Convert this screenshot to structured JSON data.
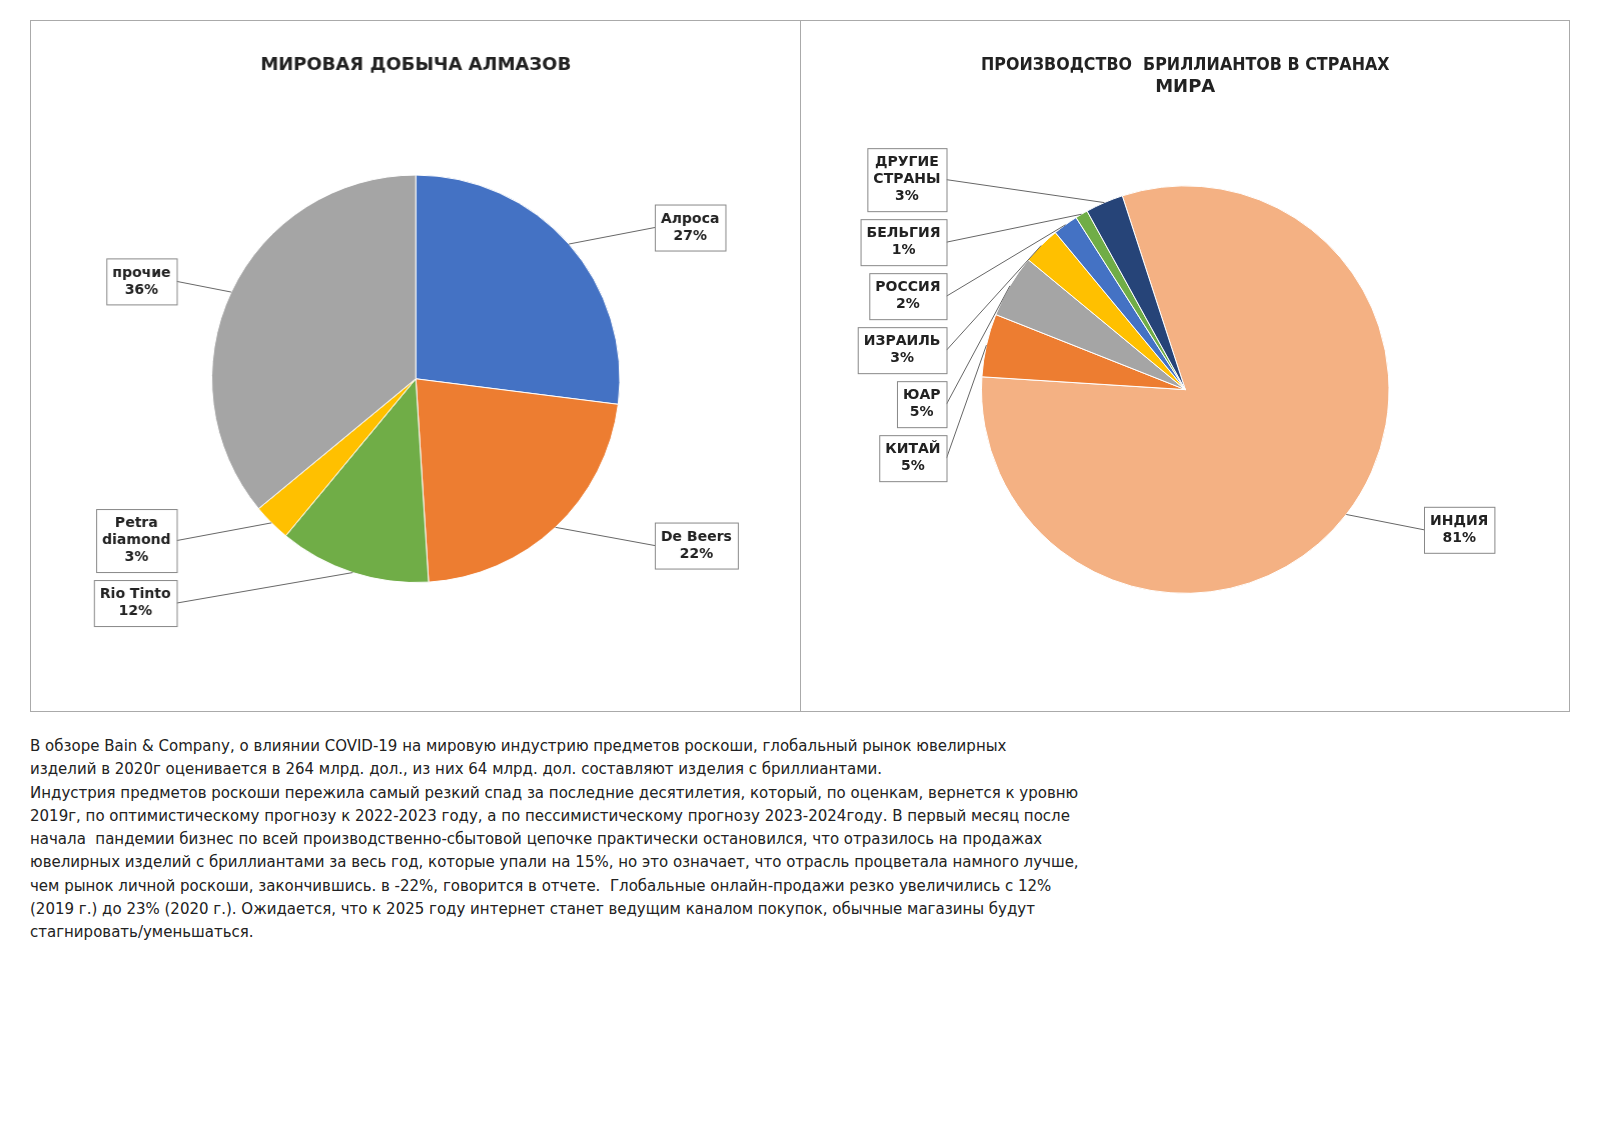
{
  "chart_data": [
    {
      "type": "pie",
      "title": "МИРОВАЯ ДОБЫЧА АЛМАЗОВ",
      "categories": [
        "Алроса",
        "De Beers",
        "Rio Tinto",
        "Petra\ndiamond",
        "прочие"
      ],
      "values": [
        27,
        22,
        12,
        3,
        36
      ],
      "value_labels": [
        "27%",
        "22%",
        "12%",
        "3%",
        "36%"
      ],
      "colors": [
        "#4472C4",
        "#ED7D31",
        "#70AD47",
        "#FFC000",
        "#A5A5A5"
      ],
      "data_labels": true
    },
    {
      "type": "pie",
      "title": "ПРОИЗВОДСТВО  БРИЛЛИАНТОВ В СТРАНАХ\nМИРА",
      "categories": [
        "ИНДИЯ",
        "КИТАЙ",
        "ЮАР",
        "ИЗРАИЛЬ",
        "РОССИЯ",
        "БЕЛЬГИЯ",
        "ДРУГИЕ\nСТРАНЫ"
      ],
      "values": [
        81,
        5,
        5,
        3,
        2,
        1,
        3
      ],
      "value_labels": [
        "81%",
        "5%",
        "5%",
        "3%",
        "2%",
        "1%",
        "3%"
      ],
      "colors": [
        "#F4B183",
        "#ED7D31",
        "#A5A5A5",
        "#FFC000",
        "#4472C4",
        "#70AD47",
        "#264478"
      ],
      "data_labels": true
    }
  ],
  "text": "В обзоре Bain & Company, о влиянии COVID-19 на мировую индустрию предметов роскоши, глобальный рынок ювелирных\nизделий в 2020г оценивается в 264 млрд. дол., из них 64 млрд. дол. составляют изделия с бриллиантами.\nИндустрия предметов роскоши пережила самый резкий спад за последние десятилетия, который, по оценкам, вернется к уровню\n2019г, по оптимистическому прогнозу к 2022-2023 году, а по пессимистическому прогнозу 2023-2024году. В первый месяц после\nначала  пандемии бизнес по всей производственно-сбытовой цепочке практически остановился, что отразилось на продажах\nювелирных изделий с бриллиантами за весь год, которые упали на 15%, но это означает, что отрасль процветала намного лучше,\nчем рынок личной роскоши, закончившись. в -22%, говорится в отчете.  Глобальные онлайн-продажи резко увеличились с 12%\n(2019 г.) до 23% (2020 г.). Ожидается, что к 2025 году интернет станет ведущим каналом покупок, обычные магазины будут\nстагнировать/уменьшаться."
}
